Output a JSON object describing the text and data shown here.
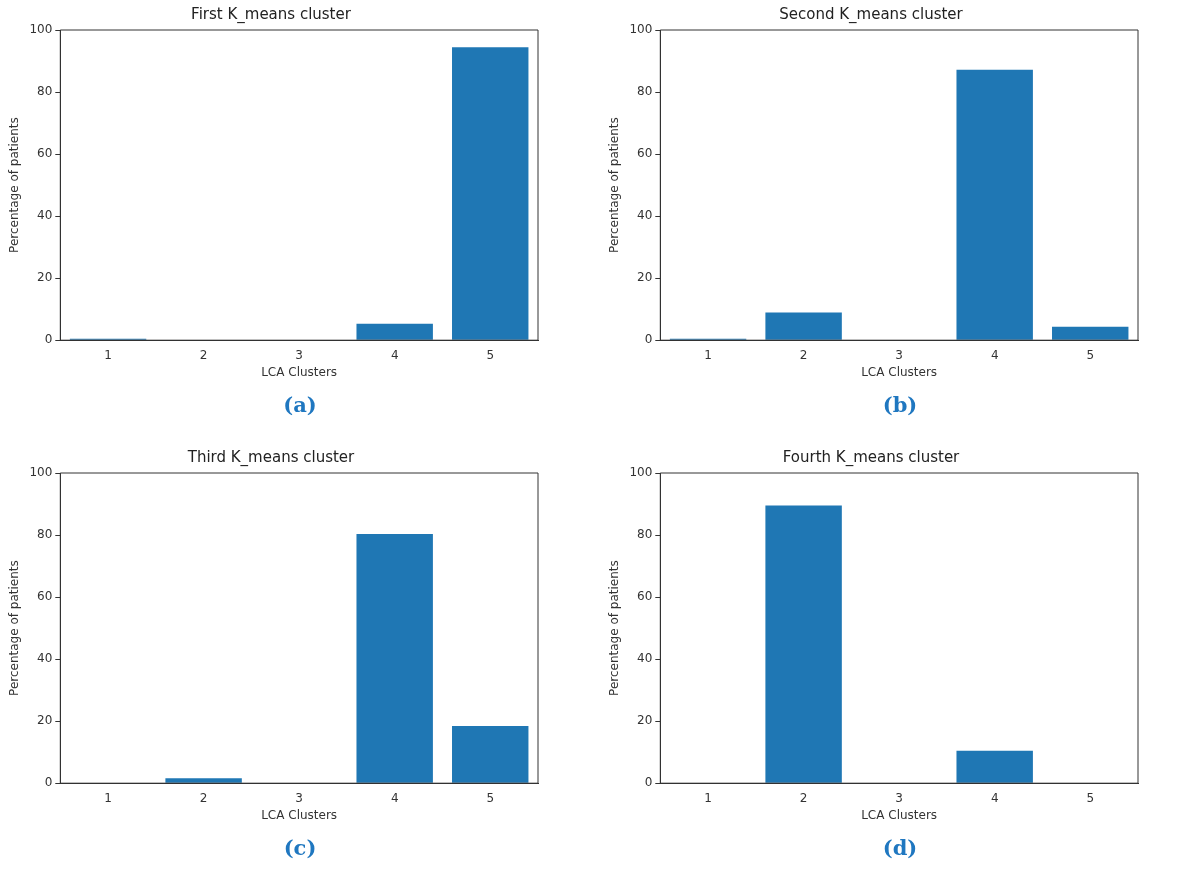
{
  "chart_data": [
    {
      "type": "bar",
      "title": "First K_means cluster",
      "xlabel": "LCA Clusters",
      "ylabel": "Percentage of patients",
      "categories": [
        "1",
        "2",
        "3",
        "4",
        "5"
      ],
      "values": [
        0.5,
        0,
        0,
        5.3,
        94.4
      ],
      "color": "#1f77b4",
      "ylim": [
        0,
        100
      ],
      "yticks": [
        0,
        20,
        40,
        60,
        80,
        100
      ],
      "grid": false,
      "legend": false,
      "annotations": [
        "(a)"
      ]
    },
    {
      "type": "bar",
      "title": "Second K_means cluster",
      "xlabel": "LCA Clusters",
      "ylabel": "Percentage of patients",
      "categories": [
        "1",
        "2",
        "3",
        "4",
        "5"
      ],
      "values": [
        0.5,
        8.9,
        0,
        87.2,
        4.3
      ],
      "color": "#1f77b4",
      "ylim": [
        0,
        100
      ],
      "yticks": [
        0,
        20,
        40,
        60,
        80,
        100
      ],
      "grid": false,
      "legend": false,
      "annotations": [
        "(b)"
      ]
    },
    {
      "type": "bar",
      "title": "Third K_means cluster",
      "xlabel": "LCA Clusters",
      "ylabel": "Percentage of patients",
      "categories": [
        "1",
        "2",
        "3",
        "4",
        "5"
      ],
      "values": [
        0,
        1.6,
        0,
        80.3,
        18.4
      ],
      "color": "#1f77b4",
      "ylim": [
        0,
        100
      ],
      "yticks": [
        0,
        20,
        40,
        60,
        80,
        100
      ],
      "grid": false,
      "legend": false,
      "annotations": [
        "(c)"
      ]
    },
    {
      "type": "bar",
      "title": "Fourth K_means cluster",
      "xlabel": "LCA Clusters",
      "ylabel": "Percentage of patients",
      "categories": [
        "1",
        "2",
        "3",
        "4",
        "5"
      ],
      "values": [
        0,
        89.5,
        0,
        10.5,
        0
      ],
      "color": "#1f77b4",
      "ylim": [
        0,
        100
      ],
      "yticks": [
        0,
        20,
        40,
        60,
        80,
        100
      ],
      "grid": false,
      "legend": false,
      "annotations": [
        "(d)"
      ]
    }
  ]
}
